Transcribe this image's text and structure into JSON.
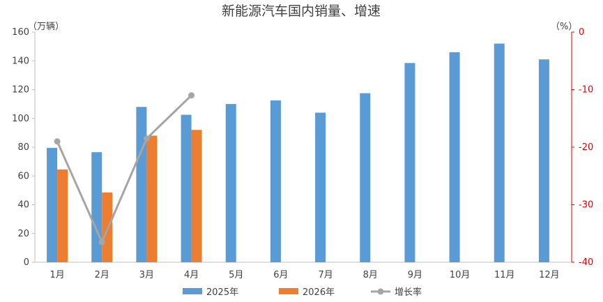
{
  "chart_data": {
    "type": "bar",
    "title": "新能源汽车国内销量、增速",
    "left_unit": "（万辆）",
    "right_unit": "（%）",
    "categories": [
      "1月",
      "2月",
      "3月",
      "4月",
      "5月",
      "6月",
      "7月",
      "8月",
      "9月",
      "10月",
      "11月",
      "12月"
    ],
    "series": [
      {
        "name": "2025年",
        "type": "bar",
        "axis": "left",
        "color": "#5b9bd5",
        "values": [
          79.5,
          76.5,
          108,
          102.5,
          110,
          112.5,
          104,
          117.5,
          138.5,
          146,
          152,
          141
        ]
      },
      {
        "name": "2026年",
        "type": "bar",
        "axis": "left",
        "color": "#ed7d31",
        "values": [
          64.5,
          48.5,
          88,
          92,
          null,
          null,
          null,
          null,
          null,
          null,
          null,
          null
        ]
      },
      {
        "name": "增长率",
        "type": "line",
        "axis": "right",
        "color": "#a5a5a5",
        "values": [
          -19,
          -36.5,
          -18.5,
          -11,
          null,
          null,
          null,
          null,
          null,
          null,
          null,
          null
        ]
      }
    ],
    "ylim_left": [
      0,
      160
    ],
    "left_ticks": [
      0,
      20,
      40,
      60,
      80,
      100,
      120,
      140,
      160
    ],
    "ylim_right": [
      -40,
      0
    ],
    "right_ticks": [
      0,
      -10,
      -20,
      -30,
      -40
    ],
    "right_axis_color": "#e00000",
    "grid": false,
    "legend_position": "bottom"
  }
}
